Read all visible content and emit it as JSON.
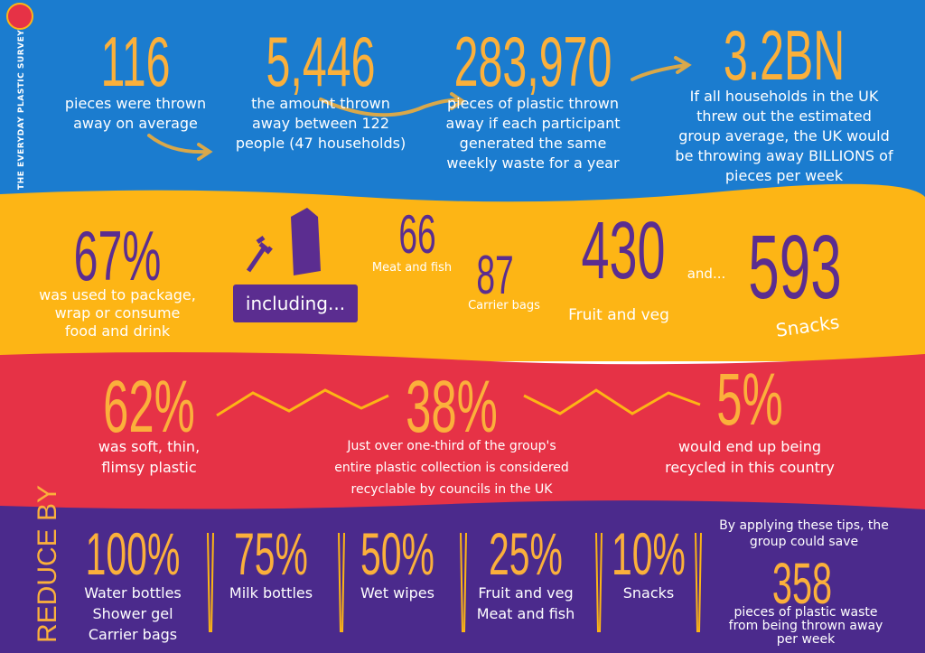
{
  "survey_label": "THE EVERYDAY PLASTIC SURVEY",
  "blue": [
    {
      "value": "116",
      "lines": [
        "pieces were thrown",
        "away on average"
      ]
    },
    {
      "value": "5,446",
      "lines": [
        "the amount thrown",
        "away between 122",
        "people (47 households)"
      ]
    },
    {
      "value": "283,970",
      "lines": [
        "pieces of plastic thrown",
        "away if each participant",
        "generated the same",
        "weekly waste for a year"
      ]
    },
    {
      "value": "3.2BN",
      "lines": [
        "If all households in the UK",
        "threw out the estimated",
        "group average, the UK would",
        "be throwing away BILLIONS of",
        "pieces per week"
      ]
    }
  ],
  "yellow": {
    "main": {
      "value": "67%",
      "lines": [
        "was used to package,",
        "wrap or consume",
        "food and drink"
      ]
    },
    "including": "including...",
    "items": [
      {
        "value": "66",
        "label": "Meat and fish"
      },
      {
        "value": "87",
        "label": "Carrier bags"
      },
      {
        "value": "430",
        "label": "Fruit and veg"
      },
      {
        "value": "593",
        "label": "Snacks"
      }
    ],
    "and": "and..."
  },
  "red": [
    {
      "value": "62%",
      "lines": [
        "was soft, thin,",
        "flimsy plastic"
      ]
    },
    {
      "value": "38%",
      "lines": [
        "Just over one-third of the group's",
        "entire plastic collection is considered",
        "recyclable by councils in the UK"
      ]
    },
    {
      "value": "5%",
      "lines": [
        "would end up being",
        "recycled in this country"
      ]
    }
  ],
  "purple": {
    "heading": "REDUCE BY",
    "items": [
      {
        "value": "100%",
        "lines": [
          "Water bottles",
          "Shower gel",
          "Carrier bags"
        ]
      },
      {
        "value": "75%",
        "lines": [
          "Milk bottles"
        ]
      },
      {
        "value": "50%",
        "lines": [
          "Wet wipes"
        ]
      },
      {
        "value": "25%",
        "lines": [
          "Fruit and veg",
          "Meat and fish"
        ]
      },
      {
        "value": "10%",
        "lines": [
          "Snacks"
        ]
      }
    ],
    "save": {
      "intro": [
        "By applying these tips, the",
        "group could save"
      ],
      "value": "358",
      "lines": [
        "pieces of plastic waste",
        "from being thrown away",
        "per week"
      ]
    }
  }
}
